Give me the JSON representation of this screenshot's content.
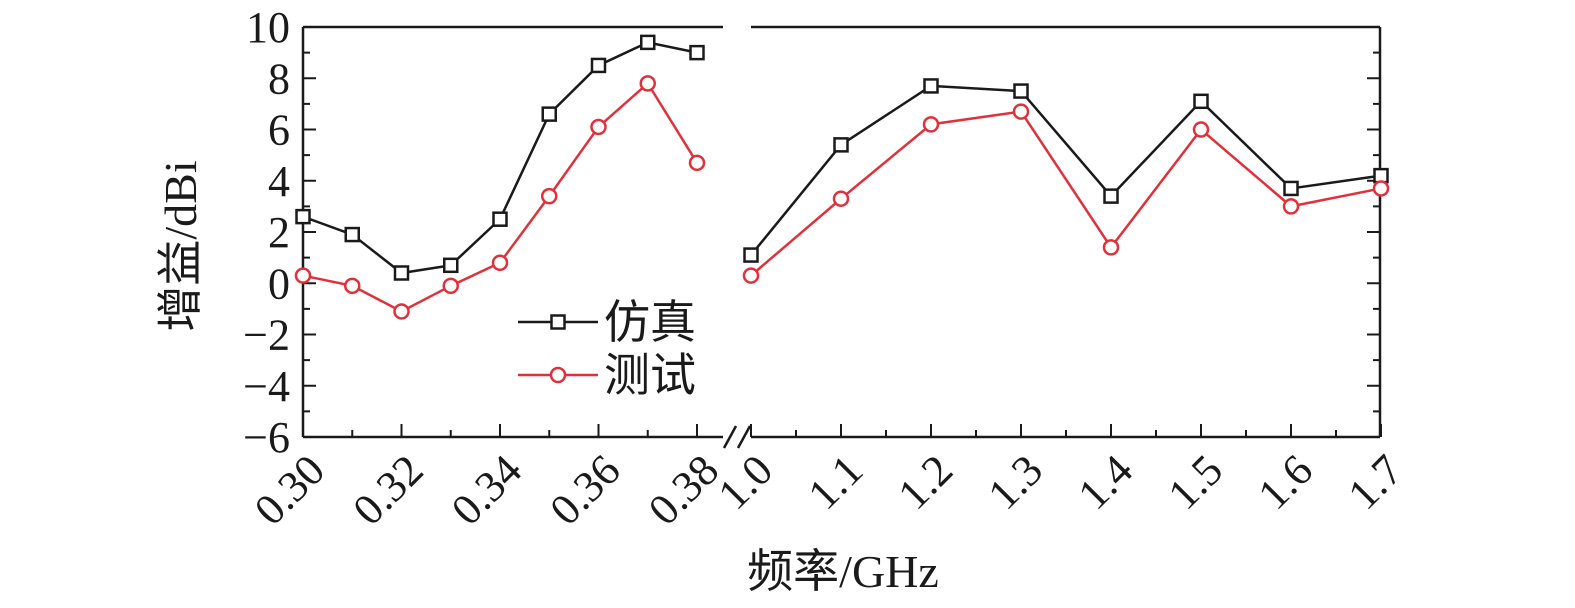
{
  "chart_data": {
    "type": "line",
    "xlabel": "频率/GHz",
    "ylabel": "增益/dBi",
    "ylim": [
      -6,
      10
    ],
    "yticks": [
      "−6",
      "−4",
      "−2",
      "0",
      "2",
      "4",
      "6",
      "8",
      "10"
    ],
    "x_break": true,
    "segments": [
      {
        "xlim": [
          0.3,
          0.38
        ],
        "xticks": [
          "0.30",
          "0.32",
          "0.34",
          "0.36",
          "0.38"
        ],
        "x": [
          0.3,
          0.31,
          0.32,
          0.33,
          0.34,
          0.35,
          0.36,
          0.37,
          0.38
        ]
      },
      {
        "xlim": [
          1.0,
          1.7
        ],
        "xticks": [
          "1.0",
          "1.1",
          "1.2",
          "1.3",
          "1.4",
          "1.5",
          "1.6",
          "1.7"
        ],
        "x": [
          1.0,
          1.1,
          1.2,
          1.3,
          1.4,
          1.5,
          1.6,
          1.7
        ]
      }
    ],
    "series": [
      {
        "name": "仿真",
        "color": "#1a1a1a",
        "marker": "square",
        "values": [
          [
            2.6,
            1.9,
            0.4,
            0.7,
            2.5,
            6.6,
            8.5,
            9.4,
            9.0
          ],
          [
            1.1,
            5.4,
            7.7,
            7.5,
            3.4,
            7.1,
            3.7,
            4.2
          ]
        ]
      },
      {
        "name": "测试",
        "color": "#e0313a",
        "marker": "circle",
        "values": [
          [
            0.3,
            -0.1,
            -1.1,
            -0.1,
            0.8,
            3.4,
            6.1,
            7.8,
            4.7
          ],
          [
            0.3,
            3.3,
            6.2,
            6.7,
            1.4,
            6.0,
            3.0,
            3.7
          ]
        ]
      }
    ],
    "legend": {
      "position": "center-left"
    }
  }
}
